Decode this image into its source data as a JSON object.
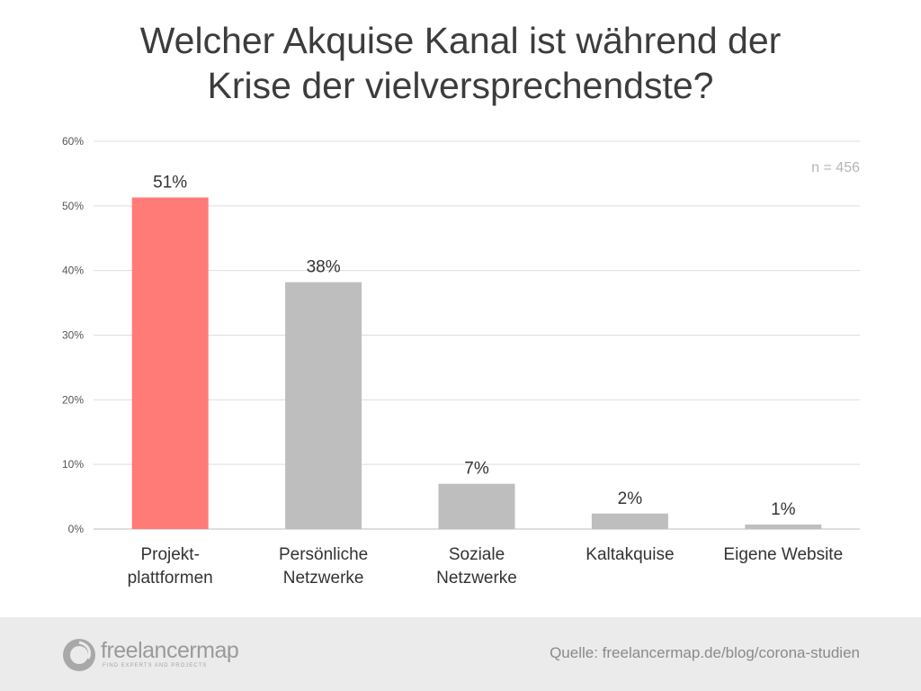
{
  "chart_data": {
    "type": "bar",
    "title_lines": [
      "Welcher Akquise Kanal ist während der",
      "Krise der vielversprechendste?"
    ],
    "categories": [
      [
        "Projekt-",
        "plattformen"
      ],
      [
        "Persönliche",
        "Netzwerke"
      ],
      [
        "Soziale",
        "Netzwerke"
      ],
      [
        "Kaltakquise"
      ],
      [
        "Eigene Website"
      ]
    ],
    "values": [
      51.3,
      38.2,
      7.0,
      2.4,
      0.7
    ],
    "value_labels": [
      "51%",
      "38%",
      "7%",
      "2%",
      "1%"
    ],
    "bar_colors": [
      "#ff7b78",
      "#bebebe",
      "#bebebe",
      "#bebebe",
      "#bebebe"
    ],
    "ylim": [
      0,
      60
    ],
    "yticks": [
      0,
      10,
      20,
      30,
      40,
      50,
      60
    ],
    "ytick_labels": [
      "0%",
      "10%",
      "20%",
      "30%",
      "40%",
      "50%",
      "60%"
    ],
    "annotation": "n = 456",
    "grid": true,
    "xlabel": "",
    "ylabel": ""
  },
  "footer": {
    "logo_wordmark": "freelancermap",
    "logo_tagline": "FIND EXPERTS AND PROJECTS",
    "source": "Quelle: freelancermap.de/blog/corona-studien"
  }
}
